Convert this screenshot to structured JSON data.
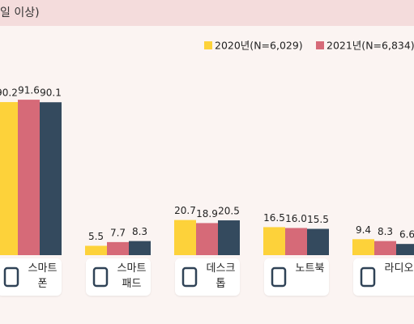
{
  "chart_data": {
    "type": "bar",
    "title": "일 이상)",
    "categories": [
      "스마트폰",
      "스마트패드",
      "데스크톱",
      "노트북",
      "라디오"
    ],
    "series": [
      {
        "name": "2020년(N=6,029)",
        "color": "#fdd23a",
        "values": [
          90.2,
          5.5,
          20.7,
          16.5,
          9.4
        ],
        "value_labels": [
          "90.2",
          "5.5",
          "20.7",
          "16.5",
          "9.4"
        ]
      },
      {
        "name": "2021년(N=6,834)",
        "color": "#d66a78",
        "values": [
          91.6,
          7.7,
          18.9,
          16.0,
          8.3
        ],
        "value_labels": [
          "91.6",
          "7.7",
          "18.9",
          "16.0",
          "8.3"
        ]
      },
      {
        "color": "#344a5e",
        "values": [
          90.1,
          8.3,
          20.5,
          15.5,
          6.6
        ],
        "value_labels": [
          "90.1",
          "8.3",
          "20.5",
          "15.5",
          "6.6"
        ]
      }
    ],
    "ylim": [
      0,
      100
    ]
  }
}
